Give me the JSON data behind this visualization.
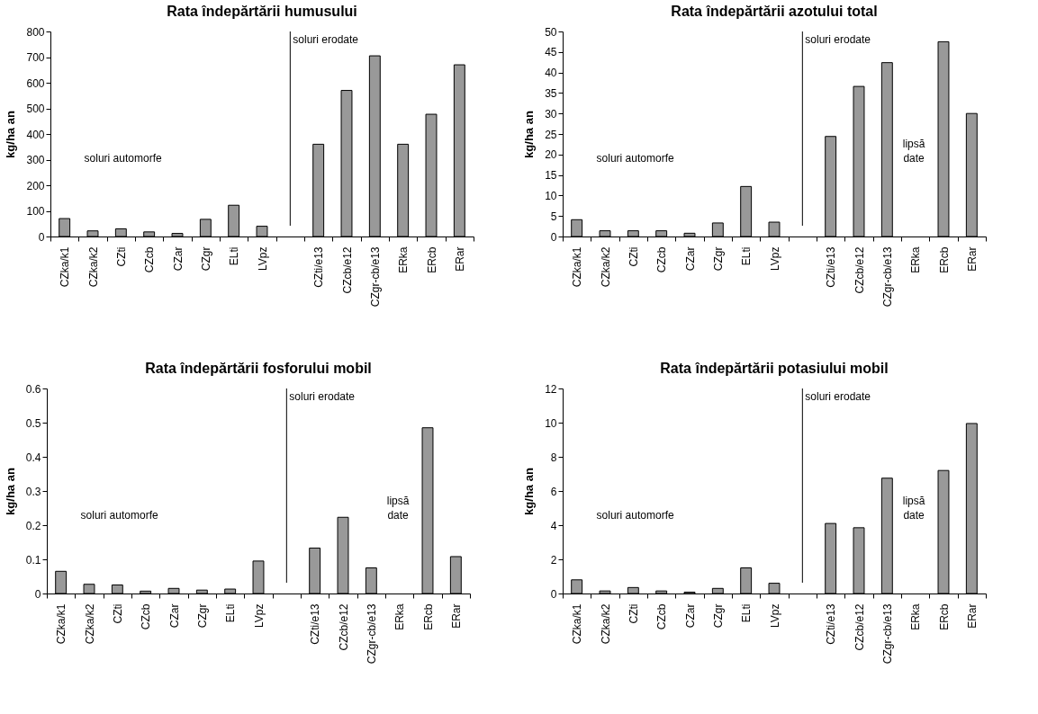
{
  "chart_data": [
    {
      "type": "bar",
      "title": "Rata îndepărtării humusului",
      "ylabel": "kg/ha an",
      "categories": [
        "CZka/k1",
        "CZka/k2",
        "CZti",
        "CZcb",
        "CZar",
        "CZgr",
        "ELti",
        "LVpz",
        null,
        "CZti/e13",
        "CZcb/e12",
        "CZgr-cb/e13",
        "ERka",
        "ERcb",
        "ERar"
      ],
      "values": [
        70,
        22,
        30,
        18,
        12,
        67,
        122,
        40,
        null,
        360,
        570,
        705,
        360,
        477,
        670
      ],
      "color": "#999999",
      "ylim": [
        0,
        800
      ],
      "yticks": [
        0,
        100,
        200,
        300,
        400,
        500,
        600,
        700,
        800
      ],
      "ref_lines": [
        {
          "axis": "x",
          "value": null,
          "label": "soluri erodate"
        }
      ],
      "annotations": [
        "soluri automorfe"
      ]
    },
    {
      "type": "bar",
      "title": "Rata îndepărtării azotului total",
      "ylabel": "kg/ha an",
      "categories": [
        "CZka/k1",
        "CZka/k2",
        "CZti",
        "CZcb",
        "CZar",
        "CZgr",
        "ELti",
        "LVpz",
        null,
        "CZti/e13",
        "CZcb/e12",
        "CZgr-cb/e13",
        "ERka",
        "ERcb",
        "ERar"
      ],
      "values": [
        4.1,
        1.4,
        1.4,
        1.4,
        0.8,
        3.3,
        12.2,
        3.5,
        null,
        24.4,
        36.6,
        42.4,
        null,
        47.5,
        30.0
      ],
      "color": "#999999",
      "ylim": [
        0,
        50
      ],
      "yticks": [
        0,
        5,
        10,
        15,
        20,
        25,
        30,
        35,
        40,
        45,
        50
      ],
      "ref_lines": [
        {
          "axis": "x",
          "value": null,
          "label": "soluri erodate"
        }
      ],
      "annotations": [
        "soluri automorfe",
        "lipsă date"
      ]
    },
    {
      "type": "bar",
      "title": "Rata îndepărtării fosforului mobil",
      "ylabel": "kg/ha an",
      "categories": [
        "CZka/k1",
        "CZka/k2",
        "CZti",
        "CZcb",
        "CZar",
        "CZgr",
        "ELti",
        "LVpz",
        null,
        "CZti/e13",
        "CZcb/e12",
        "CZgr-cb/e13",
        "ERka",
        "ERcb",
        "ERar"
      ],
      "values": [
        0.065,
        0.027,
        0.025,
        0.007,
        0.015,
        0.01,
        0.013,
        0.095,
        null,
        0.133,
        0.223,
        0.075,
        null,
        0.485,
        0.108
      ],
      "color": "#999999",
      "ylim": [
        0,
        0.6
      ],
      "yticks": [
        0,
        0.1,
        0.2,
        0.3,
        0.4,
        0.5,
        0.6
      ],
      "ref_lines": [
        {
          "axis": "x",
          "value": null,
          "label": "soluri erodate"
        }
      ],
      "annotations": [
        "soluri automorfe",
        "lipsă date"
      ]
    },
    {
      "type": "bar",
      "title": "Rata îndepărtării potasiului mobil",
      "ylabel": "kg/ha an",
      "categories": [
        "CZka/k1",
        "CZka/k2",
        "CZti",
        "CZcb",
        "CZar",
        "CZgr",
        "ELti",
        "LVpz",
        null,
        "CZti/e13",
        "CZcb/e12",
        "CZgr-cb/e13",
        "ERka",
        "ERcb",
        "ERar"
      ],
      "values": [
        0.8,
        0.15,
        0.35,
        0.15,
        0.08,
        0.3,
        1.5,
        0.6,
        null,
        4.1,
        3.85,
        6.75,
        null,
        7.2,
        9.95
      ],
      "color": "#999999",
      "ylim": [
        0,
        12
      ],
      "yticks": [
        0,
        2,
        4,
        6,
        8,
        10,
        12
      ],
      "ref_lines": [
        {
          "axis": "x",
          "value": null,
          "label": "soluri erodate"
        }
      ],
      "annotations": [
        "soluri automorfe",
        "lipsă date"
      ]
    }
  ]
}
